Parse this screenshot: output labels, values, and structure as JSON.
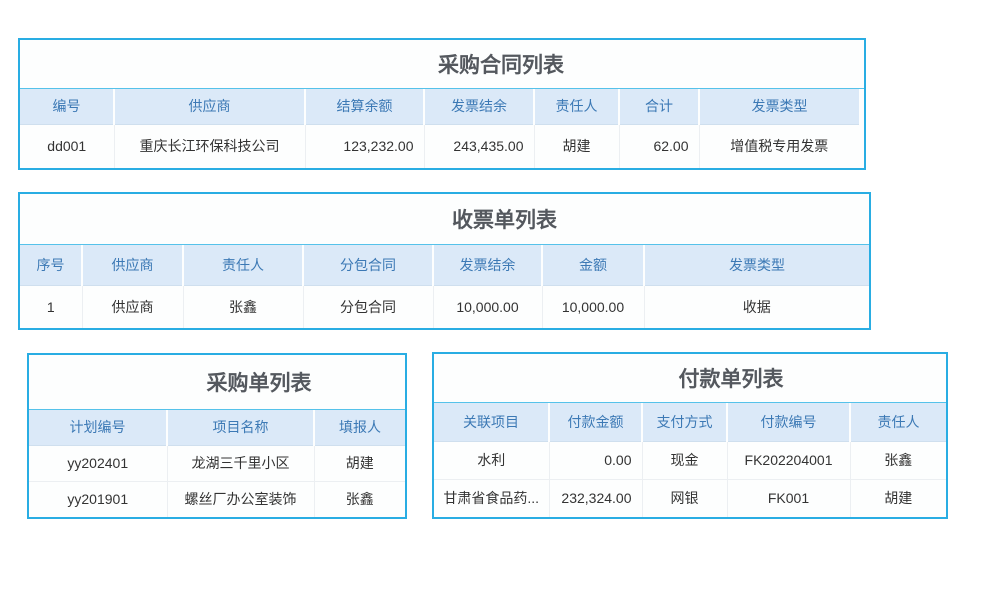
{
  "colors": {
    "panel_border": "#29ade3",
    "header_bg": "#dbe9f8",
    "header_text": "#3c79b5",
    "title_text": "#54585e",
    "body_text": "#333333"
  },
  "tables": [
    {
      "id": "purchase-contract-list",
      "title": "采购合同列表",
      "columns": [
        "编号",
        "供应商",
        "结算余额",
        "发票结余",
        "责任人",
        "合计",
        "发票类型"
      ],
      "rows": [
        [
          "dd001",
          "重庆长江环保科技公司",
          "123,232.00",
          "243,435.00",
          "胡建",
          "62.00",
          "增值税专用发票"
        ]
      ]
    },
    {
      "id": "receipt-list",
      "title": "收票单列表",
      "columns": [
        "序号",
        "供应商",
        "责任人",
        "分包合同",
        "发票结余",
        "金额",
        "发票类型"
      ],
      "rows": [
        [
          "1",
          "供应商",
          "张鑫",
          "分包合同",
          "10,000.00",
          "10,000.00",
          "收据"
        ]
      ]
    },
    {
      "id": "purchase-order-list",
      "title": "采购单列表",
      "columns": [
        "计划编号",
        "项目名称",
        "填报人"
      ],
      "rows": [
        [
          "yy202401",
          "龙湖三千里小区",
          "胡建"
        ],
        [
          "yy201901",
          "螺丝厂办公室装饰",
          "张鑫"
        ]
      ]
    },
    {
      "id": "payment-list",
      "title": "付款单列表",
      "columns": [
        "关联项目",
        "付款金额",
        "支付方式",
        "付款编号",
        "责任人"
      ],
      "rows": [
        [
          "水利",
          "0.00",
          "现金",
          "FK202204001",
          "张鑫"
        ],
        [
          "甘肃省食品药...",
          "232,324.00",
          "网银",
          "FK001",
          "胡建"
        ]
      ]
    }
  ]
}
